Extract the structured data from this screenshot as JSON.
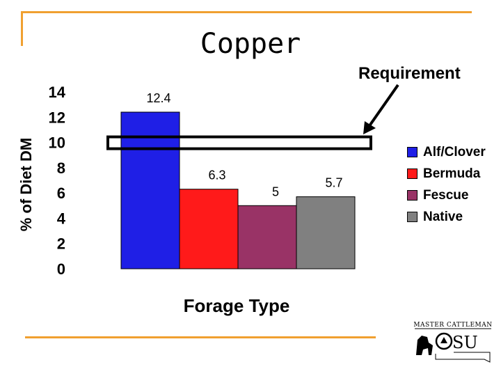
{
  "chart_data": {
    "type": "bar",
    "title": "Copper",
    "xlabel": "Forage Type",
    "ylabel": "% of Diet DM",
    "ylim": [
      0,
      14
    ],
    "yticks": [
      0,
      2,
      4,
      6,
      8,
      10,
      12,
      14
    ],
    "grid": false,
    "legend_position": "right",
    "series": [
      {
        "name": "Alf/Clover",
        "value": 12.4,
        "label": "12.4",
        "color": "#1f1fe6"
      },
      {
        "name": "Bermuda",
        "value": 6.3,
        "label": "6.3",
        "color": "#ff1a1a"
      },
      {
        "name": "Fescue",
        "value": 5,
        "label": "5",
        "color": "#993366"
      },
      {
        "name": "Native",
        "value": 5.7,
        "label": "5.7",
        "color": "#808080"
      }
    ],
    "annotation": {
      "text": "Requirement",
      "value": 10
    }
  },
  "logo": {
    "text": "MASTER CATTLEMAN",
    "mark": "OSU"
  },
  "colors": {
    "rule": "#f0a030"
  }
}
